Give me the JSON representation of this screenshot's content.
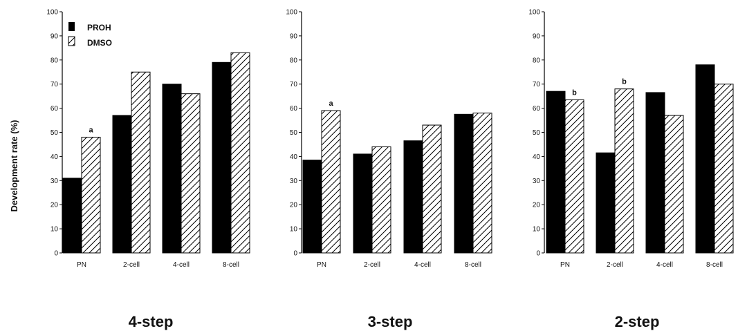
{
  "figure": {
    "ylabel": "Development rate (%)",
    "legend": [
      {
        "name": "PROH",
        "style": "solid",
        "color": "#000000"
      },
      {
        "name": "DMSO",
        "style": "hatched",
        "color": "#000000"
      }
    ]
  },
  "chart_data": [
    {
      "type": "bar",
      "title": "4-step",
      "categories": [
        "PN",
        "2-cell",
        "4-cell",
        "8-cell"
      ],
      "ylabel": "Development rate (%)",
      "ylim": [
        0,
        100
      ],
      "yticks": [
        0,
        10,
        20,
        30,
        40,
        50,
        60,
        70,
        80,
        90,
        100
      ],
      "series": [
        {
          "name": "PROH",
          "values": [
            31,
            57,
            70,
            79
          ]
        },
        {
          "name": "DMSO",
          "values": [
            48,
            75,
            66,
            83
          ]
        }
      ],
      "annotations": [
        {
          "category": "PN",
          "series": "DMSO",
          "text": "a"
        }
      ]
    },
    {
      "type": "bar",
      "title": "3-step",
      "categories": [
        "PN",
        "2-cell",
        "4-cell",
        "8-cell"
      ],
      "ylabel": "",
      "ylim": [
        0,
        100
      ],
      "yticks": [
        0,
        10,
        20,
        30,
        40,
        50,
        60,
        70,
        80,
        90,
        100
      ],
      "series": [
        {
          "name": "PROH",
          "values": [
            38.5,
            41,
            46.5,
            57.5
          ]
        },
        {
          "name": "DMSO",
          "values": [
            59,
            44,
            53,
            58
          ]
        }
      ],
      "annotations": [
        {
          "category": "PN",
          "series": "DMSO",
          "text": "a"
        }
      ]
    },
    {
      "type": "bar",
      "title": "2-step",
      "categories": [
        "PN",
        "2-cell",
        "4-cell",
        "8-cell"
      ],
      "ylabel": "",
      "ylim": [
        0,
        100
      ],
      "yticks": [
        0,
        10,
        20,
        30,
        40,
        50,
        60,
        70,
        80,
        90,
        100
      ],
      "series": [
        {
          "name": "PROH",
          "values": [
            67,
            41.5,
            66.5,
            78
          ]
        },
        {
          "name": "DMSO",
          "values": [
            63.5,
            68,
            57,
            70
          ]
        }
      ],
      "annotations": [
        {
          "category": "PN",
          "series": "DMSO",
          "text": "b"
        },
        {
          "category": "2-cell",
          "series": "DMSO",
          "text": "b"
        }
      ]
    }
  ]
}
